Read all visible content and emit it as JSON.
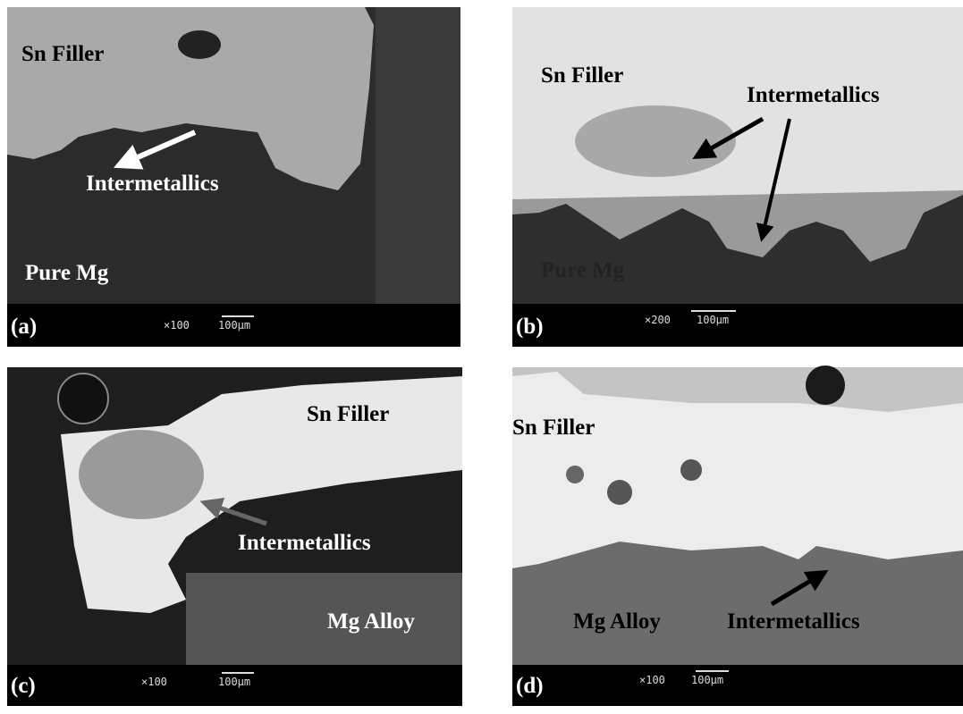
{
  "panels": [
    {
      "id": "(a)",
      "labels": [
        "Sn Filler",
        "Intermetallics",
        "Pure Mg"
      ],
      "magnification": "×100",
      "scale": "100µm"
    },
    {
      "id": "(b)",
      "labels": [
        "Sn Filler",
        "Intermetallics",
        "Pure Mg"
      ],
      "magnification": "×200",
      "scale": "100µm"
    },
    {
      "id": "(c)",
      "labels": [
        "Sn Filler",
        "Intermetallics",
        "Mg Alloy"
      ],
      "magnification": "×100",
      "scale": "100µm"
    },
    {
      "id": "(d)",
      "labels": [
        "Sn Filler",
        "Mg Alloy",
        "Intermetallics"
      ],
      "magnification": "×100",
      "scale": "100µm"
    }
  ]
}
